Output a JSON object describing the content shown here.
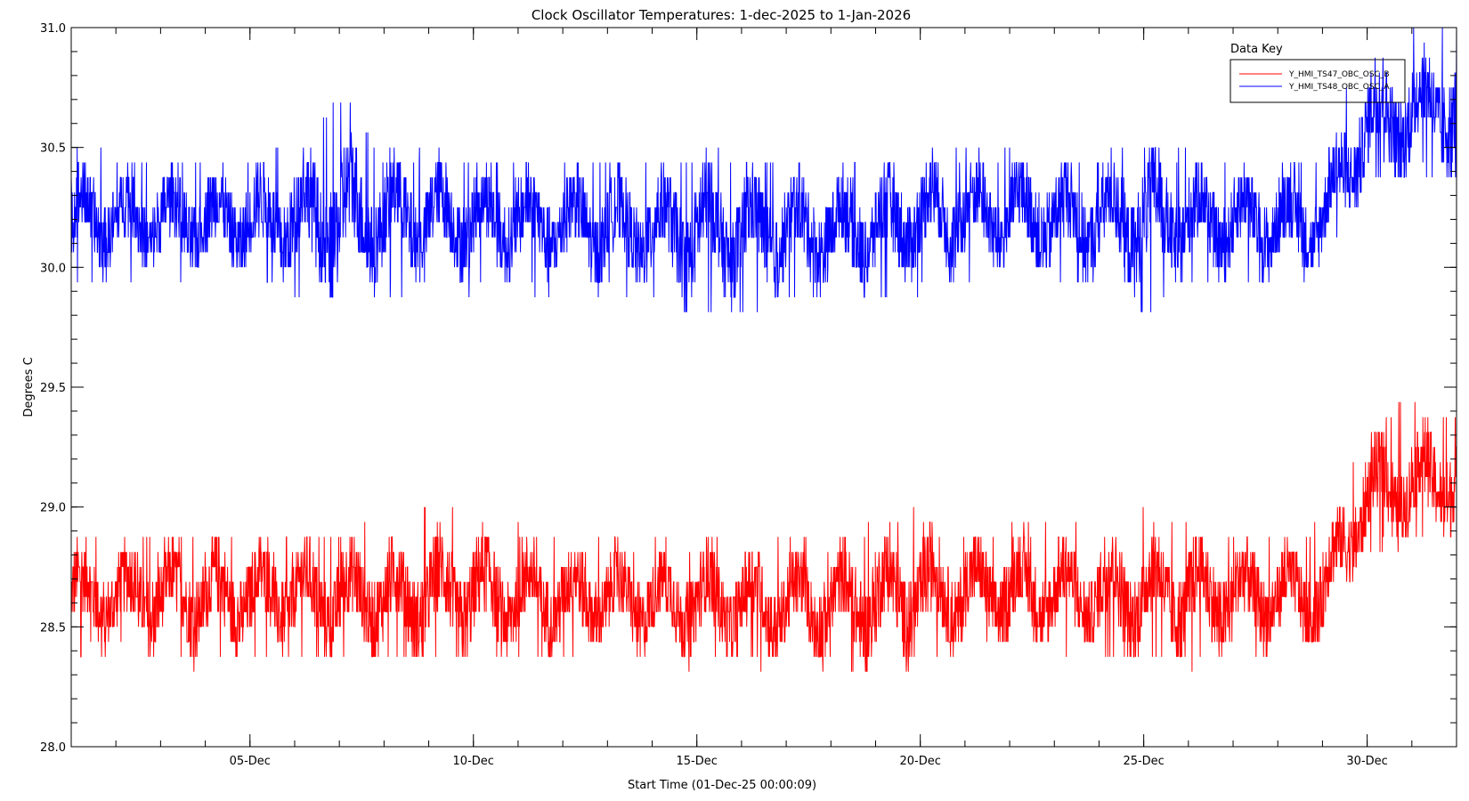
{
  "chart_data": {
    "type": "line",
    "title": "Clock Oscillator Temperatures: 1-dec-2025 to 1-Jan-2026",
    "xlabel": "Start Time (01-Dec-25 00:00:09)",
    "ylabel": "Degrees C",
    "xlim": [
      "2025-12-01",
      "2026-01-01"
    ],
    "ylim": [
      28.0,
      31.0
    ],
    "x_ticks": [
      {
        "date": "2025-12-05",
        "label": "05-Dec"
      },
      {
        "date": "2025-12-10",
        "label": "10-Dec"
      },
      {
        "date": "2025-12-15",
        "label": "15-Dec"
      },
      {
        "date": "2025-12-20",
        "label": "20-Dec"
      },
      {
        "date": "2025-12-25",
        "label": "25-Dec"
      },
      {
        "date": "2025-12-30",
        "label": "30-Dec"
      }
    ],
    "y_ticks": [
      28.0,
      28.5,
      29.0,
      29.5,
      30.0,
      30.5,
      31.0
    ],
    "y_tick_labels": [
      "28.0",
      "28.5",
      "29.0",
      "29.5",
      "30.0",
      "30.5",
      "31.0"
    ],
    "grid": false,
    "legend": {
      "title": "Data Key",
      "placement": "top-right"
    },
    "series": [
      {
        "name": "Y_HMI_TS47_OBC_OSC_B",
        "color": "#ff0000",
        "x": [
          "2025-12-01",
          "2025-12-02",
          "2025-12-03",
          "2025-12-04",
          "2025-12-05",
          "2025-12-06",
          "2025-12-07",
          "2025-12-08",
          "2025-12-09",
          "2025-12-10",
          "2025-12-11",
          "2025-12-12",
          "2025-12-13",
          "2025-12-14",
          "2025-12-15",
          "2025-12-16",
          "2025-12-17",
          "2025-12-18",
          "2025-12-19",
          "2025-12-20",
          "2025-12-21",
          "2025-12-22",
          "2025-12-23",
          "2025-12-24",
          "2025-12-25",
          "2025-12-26",
          "2025-12-27",
          "2025-12-28",
          "2025-12-29",
          "2025-12-30",
          "2025-12-31",
          "2026-01-01"
        ],
        "mean": [
          28.63,
          28.63,
          28.63,
          28.63,
          28.63,
          28.63,
          28.63,
          28.63,
          28.63,
          28.64,
          28.63,
          28.62,
          28.62,
          28.61,
          28.61,
          28.6,
          28.6,
          28.6,
          28.61,
          28.64,
          28.65,
          28.65,
          28.64,
          28.64,
          28.64,
          28.64,
          28.63,
          28.63,
          28.64,
          29.05,
          29.1,
          29.12
        ],
        "min": [
          28.38,
          28.38,
          28.35,
          28.33,
          28.33,
          28.33,
          28.35,
          28.33,
          28.35,
          28.35,
          28.38,
          28.35,
          28.35,
          28.35,
          28.33,
          28.33,
          28.33,
          28.33,
          28.25,
          28.35,
          28.38,
          28.38,
          28.38,
          28.35,
          28.35,
          28.33,
          28.33,
          28.38,
          28.38,
          28.8,
          28.85,
          28.85
        ],
        "max": [
          28.93,
          28.88,
          28.88,
          28.88,
          28.88,
          28.88,
          28.93,
          28.93,
          29.0,
          29.0,
          28.93,
          28.88,
          28.88,
          28.88,
          28.88,
          28.88,
          28.88,
          28.88,
          28.93,
          29.0,
          28.93,
          28.93,
          28.93,
          28.93,
          29.0,
          28.93,
          28.93,
          28.88,
          28.93,
          29.35,
          29.45,
          29.4
        ]
      },
      {
        "name": "Y_HMI_TS48_OBC_OSC_A",
        "color": "#0000ff",
        "x": [
          "2025-12-01",
          "2025-12-02",
          "2025-12-03",
          "2025-12-04",
          "2025-12-05",
          "2025-12-06",
          "2025-12-07",
          "2025-12-08",
          "2025-12-09",
          "2025-12-10",
          "2025-12-11",
          "2025-12-12",
          "2025-12-13",
          "2025-12-14",
          "2025-12-15",
          "2025-12-16",
          "2025-12-17",
          "2025-12-18",
          "2025-12-19",
          "2025-12-20",
          "2025-12-21",
          "2025-12-22",
          "2025-12-23",
          "2025-12-24",
          "2025-12-25",
          "2025-12-26",
          "2025-12-27",
          "2025-12-28",
          "2025-12-29",
          "2025-12-30",
          "2025-12-31",
          "2026-01-01"
        ],
        "mean": [
          30.2,
          30.2,
          30.2,
          30.2,
          30.2,
          30.2,
          30.21,
          30.22,
          30.21,
          30.2,
          30.19,
          30.18,
          30.17,
          30.16,
          30.15,
          30.14,
          30.15,
          30.15,
          30.16,
          30.22,
          30.23,
          30.22,
          30.21,
          30.2,
          30.2,
          30.2,
          30.19,
          30.19,
          30.2,
          30.6,
          30.65,
          30.68
        ],
        "min": [
          29.93,
          29.93,
          29.93,
          29.93,
          29.93,
          29.88,
          29.85,
          29.88,
          29.88,
          29.9,
          29.88,
          29.88,
          29.88,
          29.85,
          29.78,
          29.78,
          29.85,
          29.85,
          29.85,
          29.9,
          29.93,
          29.93,
          29.93,
          29.9,
          29.78,
          29.9,
          29.9,
          29.9,
          29.93,
          30.38,
          30.38,
          30.33
        ],
        "max": [
          30.52,
          30.45,
          30.45,
          30.45,
          30.5,
          30.5,
          30.73,
          30.5,
          30.5,
          30.45,
          30.45,
          30.45,
          30.45,
          30.45,
          30.5,
          30.45,
          30.45,
          30.45,
          30.45,
          30.5,
          30.5,
          30.5,
          30.5,
          30.5,
          30.5,
          30.5,
          30.45,
          30.45,
          30.45,
          31.0,
          31.0,
          31.0
        ]
      }
    ]
  }
}
